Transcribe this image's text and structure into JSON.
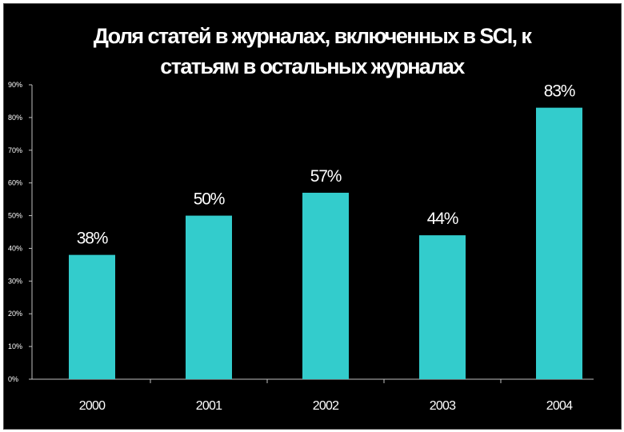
{
  "chart_data": {
    "type": "bar",
    "title_lines": [
      "Доля статей в журналах, включенных в SCI, к",
      "статьям в остальных журналах"
    ],
    "categories": [
      "2000",
      "2001",
      "2002",
      "2003",
      "2004"
    ],
    "values": [
      0.38,
      0.5,
      0.57,
      0.44,
      0.83
    ],
    "data_labels": [
      "38%",
      "50%",
      "57%",
      "44%",
      "83%"
    ],
    "y_ticks": [
      0,
      0.1,
      0.2,
      0.3,
      0.4,
      0.5,
      0.6,
      0.7,
      0.8,
      0.9
    ],
    "y_tick_labels": [
      "0%",
      "10%",
      "20%",
      "30%",
      "40%",
      "50%",
      "60%",
      "70%",
      "80%",
      "90%"
    ],
    "ylim": [
      0,
      0.9
    ],
    "xlabel": "",
    "ylabel": "",
    "grid": false,
    "legend": "none",
    "colors": {
      "bar": "#33cccc",
      "background": "#000000",
      "text": "#ffffff",
      "axis": "#c0c0c0"
    }
  }
}
